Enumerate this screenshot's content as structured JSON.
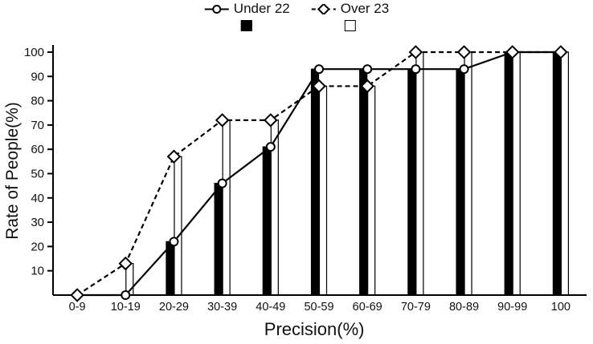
{
  "chart_data": {
    "type": "bar",
    "subtype": "bar+line combo",
    "title": "",
    "xlabel": "Precision(%)",
    "ylabel": "Rate of People(%)",
    "categories": [
      "0-9",
      "10-19",
      "20-29",
      "30-39",
      "40-49",
      "50-59",
      "60-69",
      "70-79",
      "80-89",
      "90-99",
      "100"
    ],
    "series": [
      {
        "name": "Under 22",
        "values": [
          0,
          0,
          22,
          46,
          61,
          93,
          93,
          93,
          93,
          100,
          100
        ],
        "bar_fill": "#000000",
        "line_style": "solid",
        "marker": "circle"
      },
      {
        "name": "Over 23",
        "values": [
          0,
          13,
          57,
          72,
          72,
          86,
          86,
          100,
          100,
          100,
          100
        ],
        "bar_fill": "#ffffff",
        "line_style": "dashed",
        "marker": "diamond"
      }
    ],
    "ylim": [
      0,
      100
    ],
    "yticks": [
      10,
      20,
      30,
      40,
      50,
      60,
      70,
      80,
      90,
      100
    ],
    "grid": false,
    "legend_position": "top-center",
    "colors": {
      "axis": "#000000",
      "text": "#111111",
      "background": "#ffffff"
    }
  },
  "legend": {
    "items": [
      {
        "label": "Under 22",
        "marker": "circle",
        "swatch": "filled"
      },
      {
        "label": "Over 23",
        "marker": "diamond",
        "swatch": "empty"
      }
    ]
  },
  "axes": {
    "x_title": "Precision(%)",
    "y_title": "Rate of People(%)"
  }
}
